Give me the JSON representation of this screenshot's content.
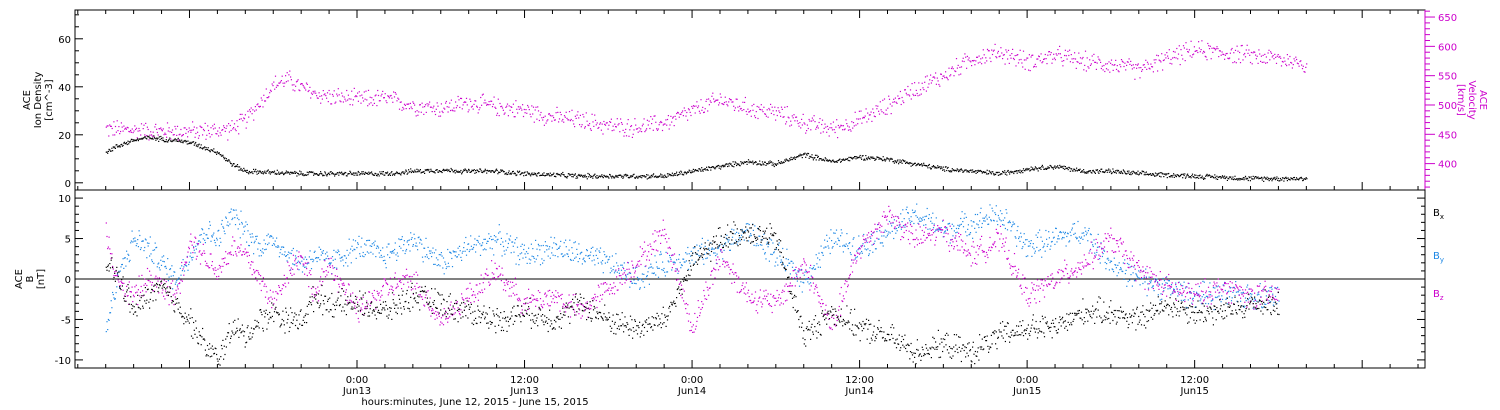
{
  "chart_data": [
    {
      "type": "scatter",
      "panel": "plasma",
      "left_axis": {
        "label_lines": [
          "ACE",
          "Ion Density",
          "[cm^-3]"
        ],
        "ylim": [
          -3,
          72
        ],
        "ticks": [
          0,
          20,
          40,
          60
        ],
        "tick_labels": [
          "0",
          "20",
          "40",
          "60"
        ]
      },
      "right_axis": {
        "label_lines": [
          "ACE",
          "Velocity",
          "[km/s]"
        ],
        "ylim": [
          355,
          662
        ],
        "ticks": [
          400,
          450,
          500,
          550,
          600,
          650
        ],
        "tick_labels": [
          "400",
          "450",
          "500",
          "550",
          "600",
          "650"
        ],
        "color": "#cc00cc"
      },
      "series": [
        {
          "color": "#000000",
          "axis": "left",
          "x_hours": [
            -18,
            -17,
            -16,
            -15,
            -14,
            -13,
            -12,
            -11,
            -10,
            -9,
            -8,
            -6,
            -4,
            -2,
            0,
            2,
            4,
            6,
            8,
            10,
            12,
            14,
            16,
            18,
            20,
            22,
            24,
            26,
            28,
            30,
            32,
            34,
            36,
            38,
            40,
            42,
            44,
            46,
            48,
            50,
            52,
            54,
            56,
            58,
            60,
            62,
            64,
            66,
            68
          ],
          "values": [
            13,
            16,
            18,
            19,
            18.5,
            18,
            17,
            15,
            13,
            8,
            5,
            4.5,
            4,
            4,
            4,
            4,
            5,
            5.5,
            5,
            5,
            4,
            3.5,
            3,
            3,
            3,
            3,
            5,
            7,
            9,
            8,
            12,
            9,
            11,
            10,
            8,
            6,
            5,
            4,
            6,
            7,
            5,
            5,
            4,
            3.5,
            3,
            2.5,
            2,
            2,
            2
          ]
        },
        {
          "color": "#cc00cc",
          "axis": "right",
          "x_hours": [
            -18,
            -16,
            -14,
            -12,
            -10,
            -9,
            -8,
            -7,
            -6,
            -5,
            -4,
            -3,
            -2,
            0,
            2,
            4,
            6,
            8,
            10,
            12,
            14,
            16,
            18,
            20,
            22,
            24,
            26,
            28,
            30,
            32,
            34,
            36,
            38,
            40,
            42,
            44,
            46,
            48,
            50,
            52,
            54,
            56,
            58,
            60,
            62,
            64,
            66,
            68
          ],
          "values": [
            460,
            458,
            456,
            456,
            457,
            460,
            475,
            505,
            535,
            545,
            530,
            520,
            515,
            510,
            512,
            500,
            495,
            505,
            498,
            492,
            480,
            475,
            465,
            462,
            470,
            490,
            510,
            495,
            488,
            470,
            460,
            475,
            500,
            530,
            550,
            580,
            590,
            575,
            585,
            575,
            570,
            560,
            580,
            595,
            590,
            585,
            580,
            570
          ]
        }
      ],
      "x_ticks": [
        {
          "hours": 0,
          "time": "0:00",
          "date": "Jun13"
        },
        {
          "hours": 12,
          "time": "12:00",
          "date": "Jun13"
        },
        {
          "hours": 24,
          "time": "0:00",
          "date": "Jun14"
        },
        {
          "hours": 36,
          "time": "12:00",
          "date": "Jun14"
        },
        {
          "hours": 48,
          "time": "0:00",
          "date": "Jun15"
        },
        {
          "hours": 60,
          "time": "12:00",
          "date": "Jun15"
        }
      ],
      "xlim_hours": [
        -20.2,
        76.5
      ]
    },
    {
      "type": "scatter",
      "panel": "magnetic",
      "left_axis": {
        "label_lines": [
          "ACE",
          "B",
          "[nT]"
        ],
        "ylim": [
          -11,
          11
        ],
        "ticks": [
          -10,
          -5,
          0,
          5,
          10
        ],
        "tick_labels": [
          "-10",
          "-5",
          "0",
          "5",
          "10"
        ]
      },
      "zero_line": true,
      "legend": {
        "placement": "right",
        "entries": [
          {
            "text": "B",
            "sub": "x",
            "color": "#000000"
          },
          {
            "text": "B",
            "sub": "y",
            "color": "#1e88e5"
          },
          {
            "text": "B",
            "sub": "z",
            "color": "#cc00cc"
          }
        ]
      },
      "series": [
        {
          "name": "Bx",
          "color": "#000000",
          "x_hours": [
            -18,
            -17,
            -16,
            -15,
            -14,
            -13,
            -12,
            -11,
            -10,
            -9,
            -8,
            -7,
            -6,
            -5,
            -4,
            -3,
            -2,
            0,
            2,
            4,
            6,
            8,
            10,
            12,
            14,
            16,
            18,
            20,
            22,
            24,
            26,
            28,
            30,
            32,
            34,
            36,
            38,
            40,
            42,
            44,
            46,
            48,
            50,
            52,
            54,
            56,
            58,
            60,
            62,
            64,
            66
          ],
          "values": [
            2,
            0,
            -4,
            -2,
            -1,
            -3,
            -5,
            -8,
            -10,
            -6,
            -7,
            -5,
            -4,
            -5,
            -5,
            -2,
            -3,
            -3,
            -4,
            -2,
            -3,
            -4,
            -5,
            -4,
            -5,
            -3,
            -5,
            -6,
            -5,
            2,
            5,
            6,
            5,
            -7,
            -4,
            -6,
            -7,
            -9,
            -8,
            -9,
            -7,
            -6,
            -6,
            -4,
            -4,
            -5,
            -3,
            -4,
            -4,
            -3,
            -3
          ]
        },
        {
          "name": "By",
          "color": "#1e88e5",
          "x_hours": [
            -18,
            -17,
            -16,
            -15,
            -14,
            -13,
            -12,
            -11,
            -10,
            -9,
            -8,
            -7,
            -6,
            -5,
            -4,
            -3,
            -2,
            0,
            2,
            4,
            6,
            8,
            10,
            12,
            14,
            16,
            18,
            20,
            22,
            24,
            26,
            28,
            30,
            32,
            34,
            36,
            38,
            40,
            42,
            44,
            46,
            48,
            50,
            52,
            54,
            56,
            58,
            60,
            62,
            64,
            66
          ],
          "values": [
            -6,
            1,
            5,
            4,
            2,
            0,
            3,
            6,
            5,
            8,
            6,
            4,
            5,
            3,
            2,
            3,
            2,
            4,
            3,
            5,
            2,
            4,
            5,
            3,
            4,
            3,
            2,
            0,
            2,
            3,
            4,
            6,
            3,
            0,
            5,
            4,
            6,
            8,
            6,
            7,
            8,
            4,
            5,
            6,
            2,
            0,
            -1,
            -2,
            -2,
            -2,
            -2
          ]
        },
        {
          "name": "Bz",
          "color": "#cc00cc",
          "x_hours": [
            -18,
            -17,
            -16,
            -15,
            -14,
            -13,
            -12,
            -11,
            -10,
            -9,
            -8,
            -7,
            -6,
            -5,
            -4,
            -3,
            -2,
            0,
            2,
            4,
            6,
            8,
            10,
            12,
            14,
            16,
            18,
            20,
            22,
            24,
            26,
            28,
            30,
            32,
            34,
            36,
            38,
            40,
            42,
            44,
            46,
            48,
            50,
            52,
            54,
            56,
            58,
            60,
            62,
            64,
            66
          ],
          "values": [
            6,
            -1,
            -2,
            0,
            -1,
            -2,
            5,
            3,
            1,
            4,
            3,
            0,
            -3,
            1,
            3,
            -2,
            2,
            -4,
            -1,
            0,
            -5,
            -2,
            1,
            -3,
            -2,
            -4,
            -1,
            2,
            6,
            -6,
            3,
            -2,
            -3,
            2,
            -6,
            4,
            8,
            5,
            6,
            3,
            5,
            -2,
            0,
            2,
            5,
            1,
            -1,
            -2,
            -1,
            -2,
            -2
          ]
        }
      ],
      "x_ticks": [
        {
          "hours": 0,
          "time": "0:00",
          "date": "Jun13"
        },
        {
          "hours": 12,
          "time": "12:00",
          "date": "Jun13"
        },
        {
          "hours": 24,
          "time": "0:00",
          "date": "Jun14"
        },
        {
          "hours": 36,
          "time": "12:00",
          "date": "Jun14"
        },
        {
          "hours": 48,
          "time": "0:00",
          "date": "Jun15"
        },
        {
          "hours": 60,
          "time": "12:00",
          "date": "Jun15"
        }
      ],
      "xlabel": "hours:minutes, June 12, 2015 - June 15, 2015",
      "xlim_hours": [
        -20.2,
        76.5
      ]
    }
  ]
}
